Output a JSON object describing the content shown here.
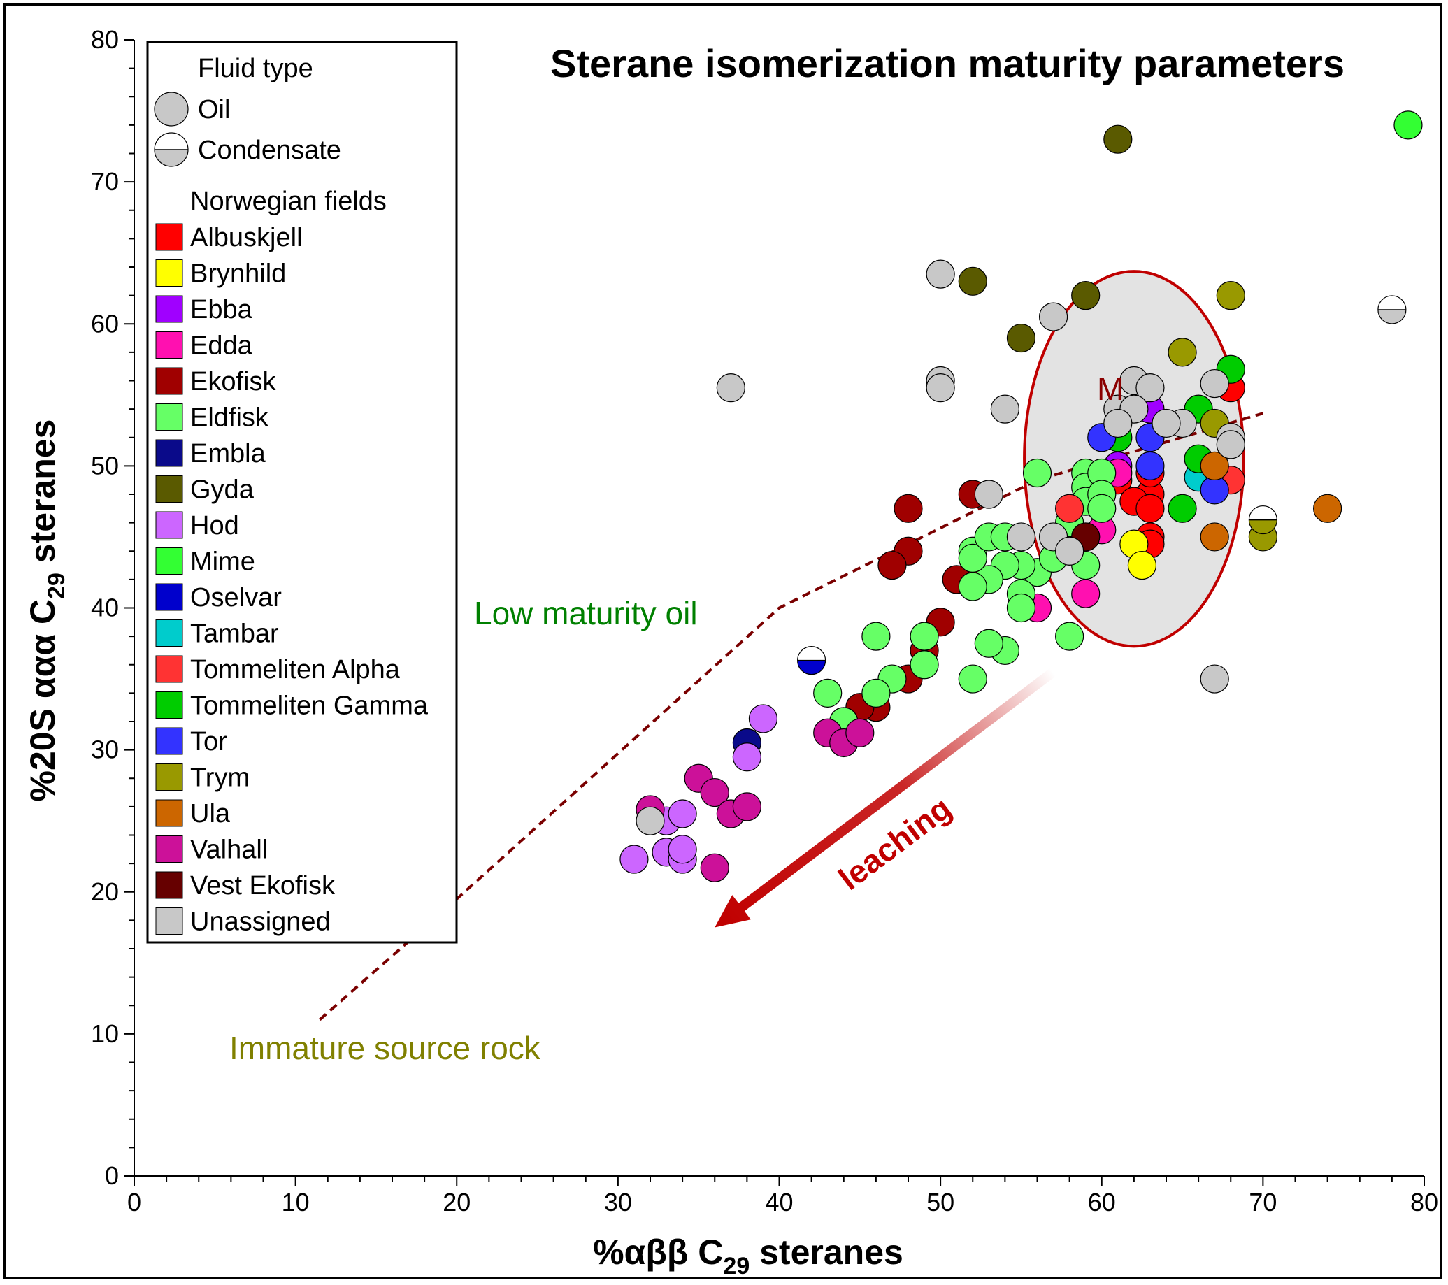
{
  "chart_data": {
    "type": "scatter",
    "title": "Sterane isomerization maturity parameters",
    "xlabel_prefix": "%αββ C",
    "xlabel_sub": "29",
    "xlabel_suffix": " steranes",
    "ylabel_prefix": "%20S ααα C",
    "ylabel_sub": "29",
    "ylabel_suffix": " steranes",
    "xlim": [
      0,
      80
    ],
    "ylim": [
      0,
      80
    ],
    "xticks": [
      0,
      10,
      20,
      30,
      40,
      50,
      60,
      70,
      80
    ],
    "yticks": [
      0,
      10,
      20,
      30,
      40,
      50,
      60,
      70,
      80
    ],
    "legend": {
      "fluid_title": "Fluid type",
      "fluid_types": [
        {
          "label": "Oil",
          "symbol": "full"
        },
        {
          "label": "Condensate",
          "symbol": "half"
        }
      ],
      "fields_title": "Norwegian fields",
      "fields": [
        {
          "name": "Albuskjell",
          "color": "#ff0000"
        },
        {
          "name": "Brynhild",
          "color": "#ffff00"
        },
        {
          "name": "Ebba",
          "color": "#a000ff"
        },
        {
          "name": "Edda",
          "color": "#ff10b0"
        },
        {
          "name": "Ekofisk",
          "color": "#a00000"
        },
        {
          "name": "Eldfisk",
          "color": "#66ff66"
        },
        {
          "name": "Embla",
          "color": "#0a0a8a"
        },
        {
          "name": "Gyda",
          "color": "#5a5a00"
        },
        {
          "name": "Hod",
          "color": "#cc66ff"
        },
        {
          "name": "Mime",
          "color": "#33ff33"
        },
        {
          "name": "Oselvar",
          "color": "#0000cc"
        },
        {
          "name": "Tambar",
          "color": "#00cccc"
        },
        {
          "name": "Tommeliten Alpha",
          "color": "#ff3333"
        },
        {
          "name": "Tommeliten Gamma",
          "color": "#00cc00"
        },
        {
          "name": "Tor",
          "color": "#3333ff"
        },
        {
          "name": "Trym",
          "color": "#999900"
        },
        {
          "name": "Ula",
          "color": "#cc6600"
        },
        {
          "name": "Valhall",
          "color": "#cc1199"
        },
        {
          "name": "Vest Ekofisk",
          "color": "#660000"
        },
        {
          "name": "Unassigned",
          "color": "#c8c8c8"
        }
      ]
    },
    "annotations": {
      "low_maturity": "Low maturity oil",
      "immature": "Immature source rock",
      "leaching": "leaching",
      "mature_label": "M"
    },
    "immature_curve": [
      [
        11.5,
        11
      ],
      [
        20,
        19.5
      ],
      [
        40,
        40
      ],
      [
        56,
        49
      ],
      [
        70,
        53.7
      ]
    ],
    "mature_ellipse": {
      "cx": 62,
      "cy": 50.5,
      "rx": 6.8,
      "ry": 13.2
    },
    "leaching_arrow": {
      "from": [
        57,
        35.5
      ],
      "to": [
        36,
        17.5
      ]
    },
    "series": [
      {
        "name": "Albuskjell",
        "color": "#ff0000",
        "points": [
          [
            61,
            49
          ],
          [
            63,
            48
          ],
          [
            63,
            49.5
          ],
          [
            60,
            48
          ],
          [
            62,
            47.5
          ],
          [
            63,
            47
          ],
          [
            68,
            55.5
          ],
          [
            63,
            45
          ],
          [
            63,
            44.5
          ]
        ]
      },
      {
        "name": "Brynhild",
        "color": "#ffff00",
        "points": [
          [
            62,
            44.5
          ],
          [
            62.5,
            43
          ]
        ]
      },
      {
        "name": "Ebba",
        "color": "#a000ff",
        "points": [
          [
            63,
            54
          ],
          [
            61,
            50
          ]
        ]
      },
      {
        "name": "Edda",
        "color": "#ff10b0",
        "points": [
          [
            56,
            40
          ],
          [
            59,
            41
          ],
          [
            60,
            45.5
          ],
          [
            61,
            49.5
          ]
        ]
      },
      {
        "name": "Ekofisk",
        "color": "#a00000",
        "points": [
          [
            48,
            47
          ],
          [
            48,
            44
          ],
          [
            47,
            43
          ],
          [
            52,
            42
          ],
          [
            50,
            39
          ],
          [
            49,
            37
          ],
          [
            48,
            35
          ],
          [
            46,
            33
          ],
          [
            45,
            33
          ],
          [
            44,
            32
          ],
          [
            51,
            42
          ],
          [
            52,
            48
          ],
          [
            59,
            45
          ]
        ]
      },
      {
        "name": "Eldfisk",
        "color": "#66ff66",
        "points": [
          [
            56,
            49.5
          ],
          [
            59,
            49.5
          ],
          [
            59,
            48.5
          ],
          [
            59,
            47.5
          ],
          [
            60,
            49.5
          ],
          [
            58,
            46
          ],
          [
            58,
            44
          ],
          [
            56,
            42.5
          ],
          [
            57,
            43.5
          ],
          [
            55,
            43
          ],
          [
            54,
            43
          ],
          [
            53,
            42
          ],
          [
            52,
            41.5
          ],
          [
            52,
            44
          ],
          [
            52,
            43.5
          ],
          [
            53,
            45
          ],
          [
            54,
            45
          ],
          [
            55,
            41
          ],
          [
            55,
            40
          ],
          [
            54,
            37
          ],
          [
            53,
            37.5
          ],
          [
            52,
            35
          ],
          [
            49,
            38
          ],
          [
            49,
            36
          ],
          [
            47,
            35
          ],
          [
            46,
            38
          ],
          [
            46,
            34
          ],
          [
            43,
            34
          ],
          [
            44,
            32
          ],
          [
            58,
            38
          ],
          [
            59,
            43
          ],
          [
            60,
            48
          ],
          [
            60,
            47
          ]
        ]
      },
      {
        "name": "Embla",
        "color": "#0a0a8a",
        "points": [
          [
            38,
            30.5
          ]
        ]
      },
      {
        "name": "Gyda",
        "color": "#5a5a00",
        "points": [
          [
            61,
            73
          ],
          [
            52,
            63
          ],
          [
            59,
            62
          ],
          [
            55,
            59
          ]
        ]
      },
      {
        "name": "Hod",
        "color": "#cc66ff",
        "points": [
          [
            31,
            22.3
          ],
          [
            33,
            22.8
          ],
          [
            34,
            22.3
          ],
          [
            34,
            23
          ],
          [
            33,
            25
          ],
          [
            34,
            25.5
          ],
          [
            39,
            32.2
          ],
          [
            38,
            29.5
          ]
        ]
      },
      {
        "name": "Mime",
        "color": "#33ff33",
        "points": [
          [
            79,
            74
          ]
        ]
      },
      {
        "name": "Tambar",
        "color": "#00cccc",
        "points": [
          [
            66,
            49.2
          ]
        ]
      },
      {
        "name": "Tommeliten Alpha",
        "color": "#ff3333",
        "points": [
          [
            58,
            47
          ],
          [
            68,
            49
          ]
        ]
      },
      {
        "name": "Tommeliten Gamma",
        "color": "#00cc00",
        "points": [
          [
            68,
            56.8
          ],
          [
            65,
            47
          ],
          [
            66,
            50.5
          ],
          [
            66,
            54
          ],
          [
            61,
            52
          ]
        ]
      },
      {
        "name": "Tor",
        "color": "#3333ff",
        "points": [
          [
            60,
            52
          ],
          [
            63,
            52
          ],
          [
            67,
            48.3
          ],
          [
            63,
            50
          ]
        ]
      },
      {
        "name": "Trym",
        "color": "#999900",
        "points": [
          [
            65,
            58
          ],
          [
            68,
            62
          ],
          [
            67,
            53
          ],
          [
            70,
            45
          ]
        ]
      },
      {
        "name": "Ula",
        "color": "#cc6600",
        "points": [
          [
            74,
            47
          ],
          [
            67,
            45
          ],
          [
            67,
            50
          ]
        ]
      },
      {
        "name": "Valhall",
        "color": "#cc1199",
        "points": [
          [
            32,
            25.8
          ],
          [
            35,
            28
          ],
          [
            36,
            27
          ],
          [
            37,
            25.5
          ],
          [
            38,
            26
          ],
          [
            36,
            21.7
          ],
          [
            43,
            31.2
          ],
          [
            44,
            30.5
          ],
          [
            45,
            31.2
          ]
        ]
      },
      {
        "name": "Vest Ekofisk",
        "color": "#660000",
        "points": [
          [
            59,
            45
          ]
        ]
      },
      {
        "name": "Unassigned",
        "color": "#c8c8c8",
        "points": [
          [
            37,
            55.5
          ],
          [
            50,
            63.5
          ],
          [
            57,
            60.5
          ],
          [
            50,
            56
          ],
          [
            50,
            55.5
          ],
          [
            54,
            54
          ],
          [
            62,
            56
          ],
          [
            63,
            55.5
          ],
          [
            67,
            55.8
          ],
          [
            61,
            54
          ],
          [
            62,
            54
          ],
          [
            61,
            53
          ],
          [
            65,
            53
          ],
          [
            68,
            52
          ],
          [
            53,
            48
          ],
          [
            55,
            45
          ],
          [
            57,
            45
          ],
          [
            58,
            44
          ],
          [
            67,
            35
          ],
          [
            32,
            25
          ],
          [
            68,
            51.5
          ],
          [
            64,
            53
          ]
        ]
      }
    ],
    "condensates": [
      {
        "name": "Oselvar",
        "color": "#0000cc",
        "point": [
          42,
          36.3
        ]
      },
      {
        "name": "Unassigned",
        "color": "#c8c8c8",
        "point": [
          78,
          61
        ]
      },
      {
        "name": "Trym",
        "color": "#999900",
        "point": [
          70,
          46.2
        ]
      }
    ]
  }
}
